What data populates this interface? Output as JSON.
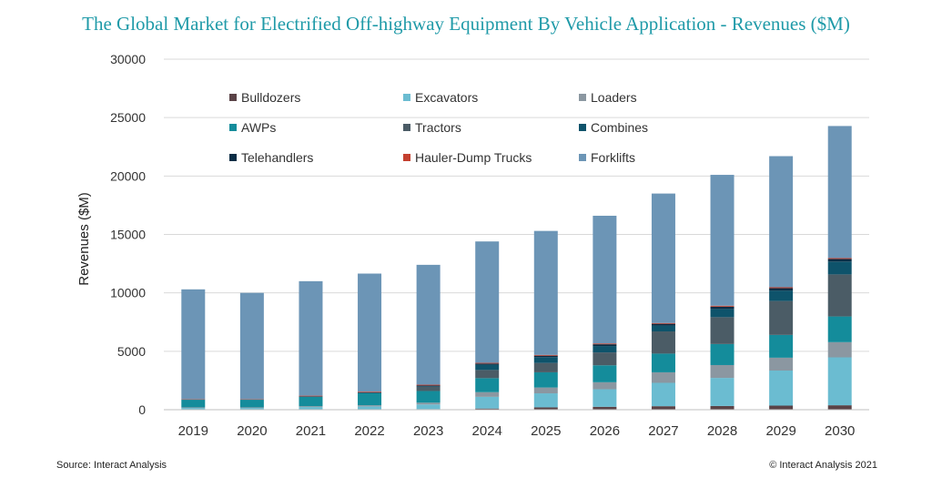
{
  "footer": {
    "source": "Source: Interact Analysis",
    "copyright": "© Interact Analysis 2021"
  },
  "chart_data": {
    "type": "bar",
    "stacked": true,
    "title": "The Global Market for Electrified Off-highway Equipment By Vehicle Application - Revenues ($M)",
    "xlabel": "",
    "ylabel": "Revenues ($M)",
    "ylim": [
      0,
      30000
    ],
    "yticks": [
      0,
      5000,
      10000,
      15000,
      20000,
      25000,
      30000
    ],
    "grid": true,
    "legend_position": "top-left, inside plot",
    "categories": [
      "2019",
      "2020",
      "2021",
      "2022",
      "2023",
      "2024",
      "2025",
      "2026",
      "2027",
      "2028",
      "2029",
      "2030"
    ],
    "series": [
      {
        "name": "Bulldozers",
        "color": "#5a4347",
        "values": [
          0,
          0,
          30,
          30,
          50,
          100,
          200,
          250,
          300,
          320,
          350,
          380
        ]
      },
      {
        "name": "Excavators",
        "color": "#6bbcd1",
        "values": [
          150,
          150,
          200,
          250,
          400,
          1000,
          1200,
          1500,
          2000,
          2400,
          3000,
          4100
        ]
      },
      {
        "name": "Loaders",
        "color": "#8b97a1",
        "values": [
          50,
          50,
          70,
          100,
          150,
          400,
          500,
          600,
          900,
          1100,
          1100,
          1300
        ]
      },
      {
        "name": "AWPs",
        "color": "#148c9b",
        "values": [
          650,
          650,
          800,
          1050,
          1000,
          1200,
          1300,
          1450,
          1600,
          1800,
          1950,
          2200
        ]
      },
      {
        "name": "Tractors",
        "color": "#4b5c66",
        "values": [
          0,
          0,
          0,
          0,
          350,
          700,
          800,
          1100,
          1900,
          2300,
          2900,
          3600
        ]
      },
      {
        "name": "Combines",
        "color": "#0e536b",
        "values": [
          0,
          0,
          0,
          0,
          50,
          450,
          500,
          550,
          500,
          700,
          900,
          1100
        ]
      },
      {
        "name": "Telehandlers",
        "color": "#0a2d45",
        "values": [
          20,
          20,
          50,
          60,
          70,
          100,
          120,
          150,
          150,
          200,
          200,
          220
        ]
      },
      {
        "name": "Hauler-Dump Trucks",
        "color": "#c4402f",
        "values": [
          30,
          30,
          50,
          60,
          70,
          60,
          70,
          70,
          70,
          80,
          80,
          80
        ]
      },
      {
        "name": "Forklifts",
        "color": "#6c95b6",
        "values": [
          9400,
          9100,
          9800,
          10100,
          10260,
          10390,
          10610,
          10930,
          11080,
          11200,
          11220,
          11300
        ]
      }
    ]
  }
}
